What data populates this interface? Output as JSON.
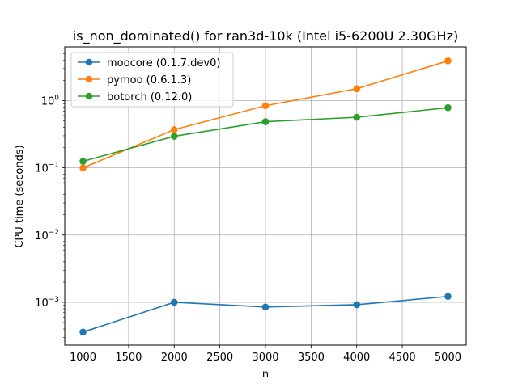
{
  "chart_data": {
    "type": "line",
    "title": "is_non_dominated() for ran3d-10k (Intel i5-6200U 2.30GHz)",
    "xlabel": "n",
    "ylabel": "CPU time (seconds)",
    "x": [
      1000,
      2000,
      3000,
      4000,
      5000
    ],
    "xlim": [
      800,
      5200
    ],
    "ylim": [
      0.00023,
      6.3
    ],
    "yscale": "log",
    "grid": true,
    "legend_position": "upper-left",
    "xticks": [
      {
        "value": 1000,
        "label": "1000"
      },
      {
        "value": 1500,
        "label": "1500"
      },
      {
        "value": 2000,
        "label": "2000"
      },
      {
        "value": 2500,
        "label": "2500"
      },
      {
        "value": 3000,
        "label": "3000"
      },
      {
        "value": 3500,
        "label": "3500"
      },
      {
        "value": 4000,
        "label": "4000"
      },
      {
        "value": 4500,
        "label": "4500"
      },
      {
        "value": 5000,
        "label": "5000"
      }
    ],
    "yticks": [
      {
        "value": 0.001,
        "base": "10",
        "exp": "−3"
      },
      {
        "value": 0.01,
        "base": "10",
        "exp": "−2"
      },
      {
        "value": 0.1,
        "base": "10",
        "exp": "−1"
      },
      {
        "value": 1,
        "base": "10",
        "exp": "0"
      }
    ],
    "series": [
      {
        "name": "moocore (0.1.7.dev0)",
        "color": "#1f77b4",
        "values": [
          0.00036,
          0.001,
          0.00085,
          0.00092,
          0.00122
        ]
      },
      {
        "name": "pymoo (0.6.1.3)",
        "color": "#ff7f0e",
        "values": [
          0.1,
          0.37,
          0.84,
          1.5,
          3.9
        ]
      },
      {
        "name": "botorch (0.12.0)",
        "color": "#2ca02c",
        "values": [
          0.125,
          0.295,
          0.485,
          0.565,
          0.785
        ]
      }
    ]
  }
}
